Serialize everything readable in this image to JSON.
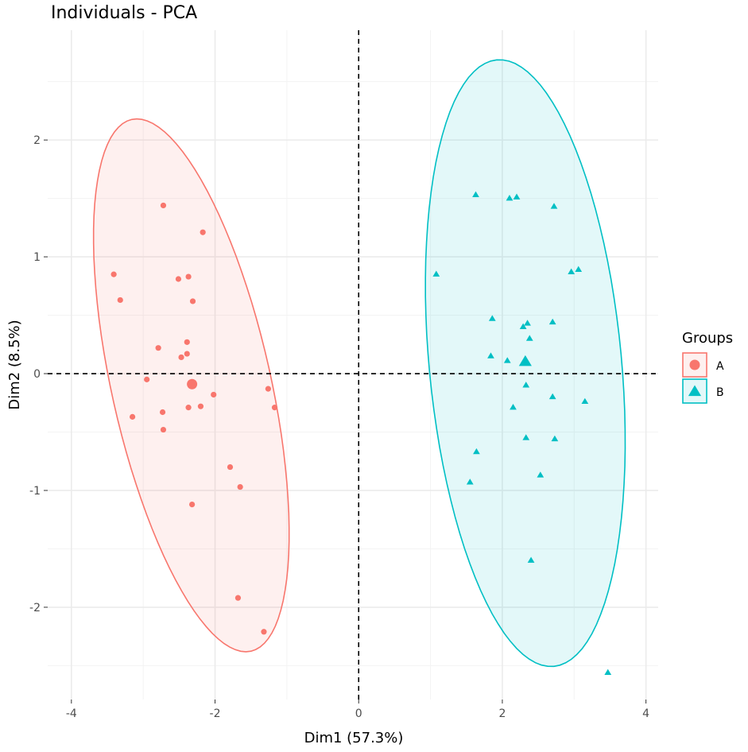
{
  "chart_data": {
    "type": "scatter",
    "title": "Individuals - PCA",
    "xlabel": "Dim1 (57.3%)",
    "ylabel": "Dim2 (8.5%)",
    "xlim": [
      -4.33,
      4.17
    ],
    "ylim": [
      -2.79,
      2.94
    ],
    "xticks": [
      -4,
      -2,
      0,
      2,
      4
    ],
    "yticks": [
      -2,
      -1,
      0,
      1,
      2
    ],
    "grid": true,
    "reference_lines": {
      "x": 0,
      "y": 0,
      "style": "dashed"
    },
    "legend": {
      "title": "Groups",
      "placement": "right"
    },
    "series": [
      {
        "name": "A",
        "color": "#F8766D",
        "marker": "circle",
        "points": [
          [
            -2.72,
            1.44
          ],
          [
            -2.17,
            1.21
          ],
          [
            -3.41,
            0.85
          ],
          [
            -2.51,
            0.81
          ],
          [
            -2.37,
            0.83
          ],
          [
            -3.32,
            0.63
          ],
          [
            -2.31,
            0.62
          ],
          [
            -2.79,
            0.22
          ],
          [
            -2.39,
            0.27
          ],
          [
            -2.39,
            0.17
          ],
          [
            -2.47,
            0.14
          ],
          [
            -2.95,
            -0.05
          ],
          [
            -2.02,
            -0.18
          ],
          [
            -1.26,
            -0.13
          ],
          [
            -2.2,
            -0.28
          ],
          [
            -2.37,
            -0.29
          ],
          [
            -1.17,
            -0.29
          ],
          [
            -2.73,
            -0.33
          ],
          [
            -3.15,
            -0.37
          ],
          [
            -2.72,
            -0.48
          ],
          [
            -1.79,
            -0.8
          ],
          [
            -1.65,
            -0.97
          ],
          [
            -2.32,
            -1.12
          ],
          [
            -1.68,
            -1.92
          ],
          [
            -1.32,
            -2.21
          ]
        ],
        "centroid": [
          -2.32,
          -0.09
        ],
        "ellipse": {
          "center": [
            -2.33,
            -0.1
          ],
          "axis1": [
            0.83,
            -2.276
          ],
          "axis2": [
            1.08,
            0.149
          ]
        }
      },
      {
        "name": "B",
        "color": "#00BFC4",
        "marker": "triangle",
        "points": [
          [
            1.63,
            1.53
          ],
          [
            2.1,
            1.5
          ],
          [
            2.2,
            1.51
          ],
          [
            2.72,
            1.43
          ],
          [
            1.08,
            0.85
          ],
          [
            2.96,
            0.87
          ],
          [
            3.06,
            0.89
          ],
          [
            1.86,
            0.47
          ],
          [
            2.35,
            0.43
          ],
          [
            2.29,
            0.4
          ],
          [
            2.7,
            0.44
          ],
          [
            2.38,
            0.3
          ],
          [
            1.84,
            0.15
          ],
          [
            2.07,
            0.11
          ],
          [
            2.33,
            -0.1
          ],
          [
            2.7,
            -0.2
          ],
          [
            3.15,
            -0.24
          ],
          [
            2.15,
            -0.29
          ],
          [
            2.33,
            -0.55
          ],
          [
            2.73,
            -0.56
          ],
          [
            1.64,
            -0.67
          ],
          [
            2.53,
            -0.87
          ],
          [
            1.55,
            -0.93
          ],
          [
            2.4,
            -1.6
          ],
          [
            3.47,
            -2.56
          ]
        ],
        "centroid": [
          2.32,
          0.1
        ],
        "ellipse": {
          "center": [
            2.32,
            0.09
          ],
          "axis1": [
            0.398,
            -2.596
          ],
          "axis2": [
            1.333,
            0.078
          ]
        }
      }
    ]
  }
}
